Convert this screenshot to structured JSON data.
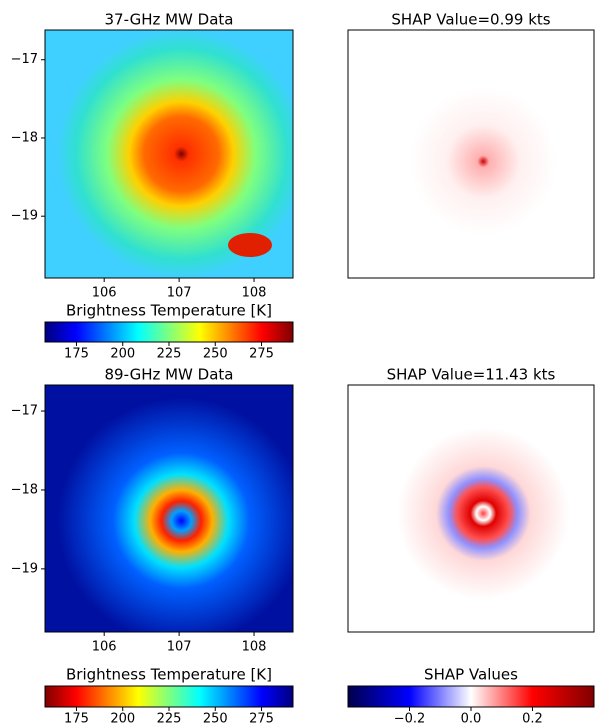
{
  "chart_data": [
    {
      "type": "heatmap",
      "title": "37-GHz MW Data",
      "xlim": [
        105.21,
        108.52
      ],
      "ylim": [
        -19.79,
        -16.62
      ],
      "xticks": [
        106,
        107,
        108
      ],
      "yticks": [
        {
          "value": -17,
          "label": "−17"
        },
        {
          "value": -18,
          "label": "−18"
        },
        {
          "value": -19,
          "label": "−19"
        }
      ]
    },
    {
      "type": "heatmap",
      "title": "SHAP Value=0.99 kts"
    },
    {
      "type": "colorbar",
      "title": "Brightness Temperature [K]",
      "xlim": [
        158,
        292
      ],
      "xticks": [
        175,
        200,
        225,
        250,
        275
      ],
      "colors": [
        "#00007f",
        "#0000ff",
        "#007fff",
        "#00ffff",
        "#7fff7f",
        "#ffff00",
        "#ff7f00",
        "#ff0000",
        "#7f0000"
      ]
    },
    {
      "type": "heatmap",
      "title": "89-GHz MW Data",
      "xlim": [
        105.21,
        108.52
      ],
      "ylim": [
        -19.8,
        -16.67
      ],
      "xticks": [
        106,
        107,
        108
      ],
      "yticks": [
        {
          "value": -17,
          "label": "−17"
        },
        {
          "value": -18,
          "label": "−18"
        },
        {
          "value": -19,
          "label": "−19"
        }
      ]
    },
    {
      "type": "heatmap",
      "title": "SHAP Value=11.43 kts"
    },
    {
      "type": "colorbar",
      "title": "Brightness Temperature [K]",
      "xlim": [
        158,
        292
      ],
      "xticks": [
        175,
        200,
        225,
        250,
        275
      ],
      "colors": [
        "#7f0000",
        "#ff0000",
        "#ff7f00",
        "#ffff00",
        "#7fff7f",
        "#00ffff",
        "#007fff",
        "#0000ff",
        "#00007f"
      ]
    },
    {
      "type": "colorbar",
      "title": "SHAP Values",
      "xlim": [
        -0.4,
        0.4
      ],
      "xticks": [
        {
          "value": -0.2,
          "label": "−0.2"
        },
        {
          "value": 0,
          "label": "0.0"
        },
        0.2
      ],
      "colors": [
        "#00004c",
        "#0000ff",
        "#ffffff",
        "#ff0000",
        "#800000"
      ]
    }
  ]
}
